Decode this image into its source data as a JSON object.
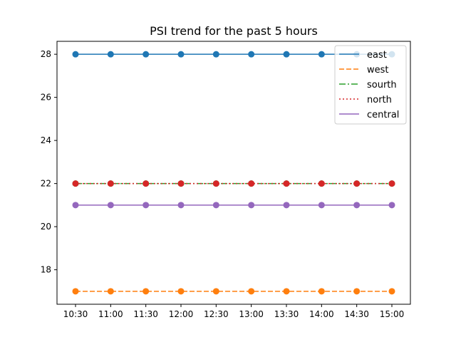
{
  "chart_data": {
    "type": "line",
    "title": "PSI trend for the past 5 hours",
    "xlabel": "",
    "ylabel": "",
    "categories": [
      "10:30",
      "11:00",
      "11:30",
      "12:00",
      "12:30",
      "13:00",
      "13:30",
      "14:00",
      "14:30",
      "15:00"
    ],
    "ylim": [
      16.4,
      28.6
    ],
    "yticks": [
      18,
      20,
      22,
      24,
      26,
      28
    ],
    "grid": false,
    "legend_position": "top-right",
    "series": [
      {
        "name": "east",
        "color": "#1f77b4",
        "line_style": "solid",
        "values": [
          28,
          28,
          28,
          28,
          28,
          28,
          28,
          28,
          28,
          28
        ]
      },
      {
        "name": "west",
        "color": "#ff7f0e",
        "line_style": "dashed",
        "values": [
          17,
          17,
          17,
          17,
          17,
          17,
          17,
          17,
          17,
          17
        ]
      },
      {
        "name": "sourth",
        "color": "#2ca02c",
        "line_style": "dashdot",
        "values": [
          22,
          22,
          22,
          22,
          22,
          22,
          22,
          22,
          22,
          22
        ]
      },
      {
        "name": "north",
        "color": "#d62728",
        "line_style": "dotted",
        "values": [
          22,
          22,
          22,
          22,
          22,
          22,
          22,
          22,
          22,
          22
        ]
      },
      {
        "name": "central",
        "color": "#9467bd",
        "line_style": "solid",
        "values": [
          21,
          21,
          21,
          21,
          21,
          21,
          21,
          21,
          21,
          21
        ]
      }
    ]
  }
}
